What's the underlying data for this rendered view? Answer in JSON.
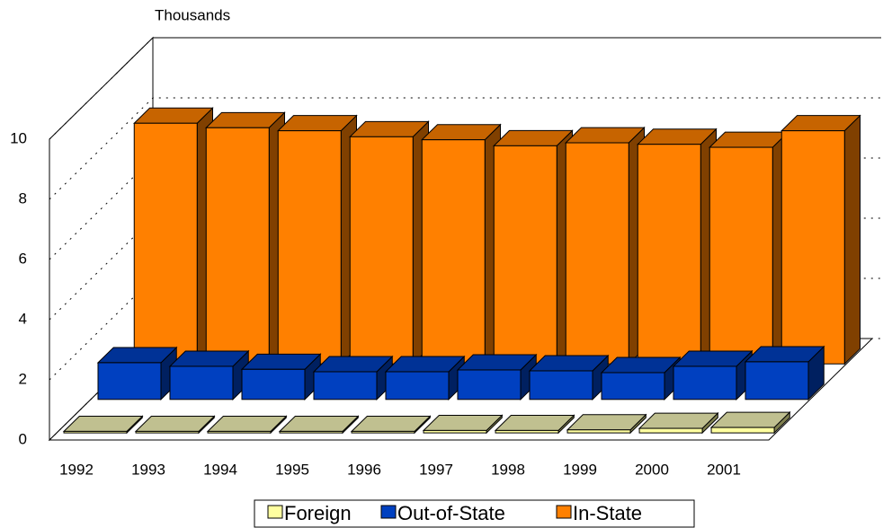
{
  "chart_data": {
    "type": "bar3d",
    "y_label": "Thousands",
    "categories": [
      "1992",
      "1993",
      "1994",
      "1995",
      "1996",
      "1997",
      "1998",
      "1999",
      "2000",
      "2001"
    ],
    "series": [
      {
        "name": "Foreign",
        "color": "#ffffa0",
        "values": [
          0.05,
          0.05,
          0.05,
          0.05,
          0.05,
          0.08,
          0.08,
          0.1,
          0.15,
          0.18
        ]
      },
      {
        "name": "Out-of-State",
        "color": "#0040c0",
        "values": [
          1.22,
          1.1,
          1.0,
          0.92,
          0.92,
          0.98,
          0.95,
          0.89,
          1.1,
          1.25
        ]
      },
      {
        "name": "In-State",
        "color": "#ff8000",
        "values": [
          8.0,
          7.85,
          7.75,
          7.55,
          7.45,
          7.25,
          7.35,
          7.3,
          7.2,
          7.75
        ]
      }
    ],
    "ylim": [
      0,
      10
    ],
    "yticks": [
      0,
      2,
      4,
      6,
      8,
      10
    ],
    "grid": true,
    "legend": "bottom"
  }
}
